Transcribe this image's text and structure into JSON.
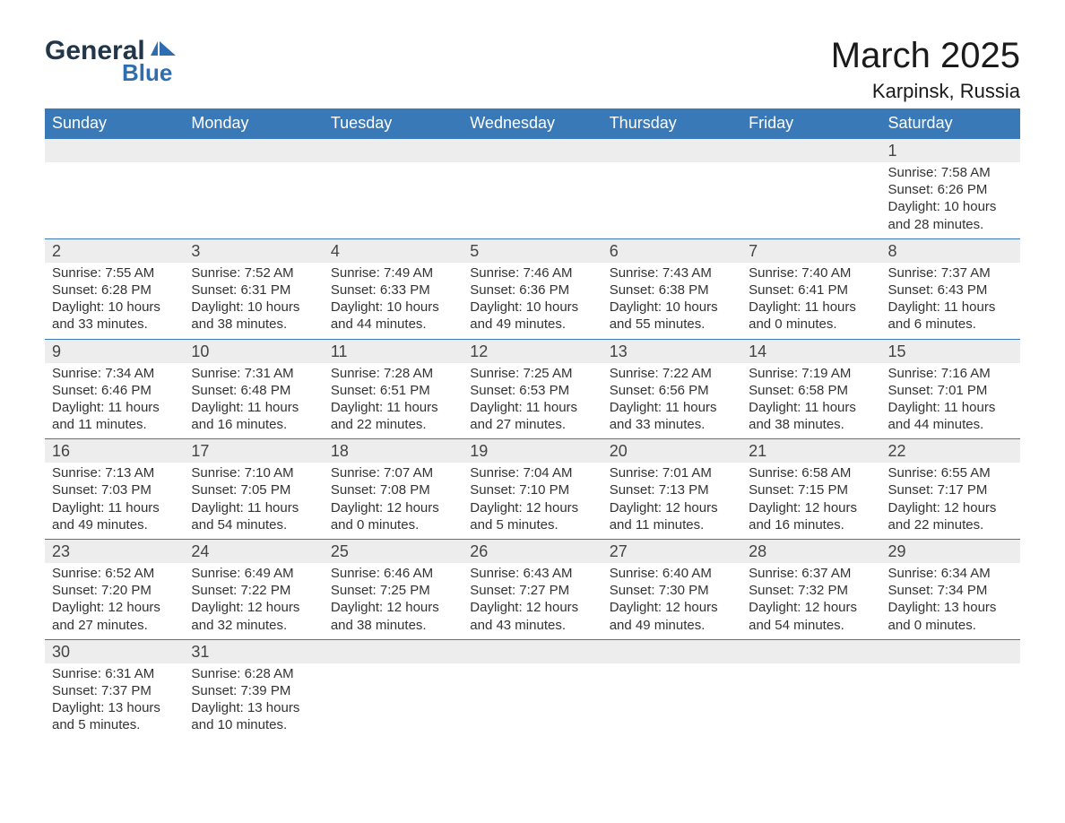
{
  "logo": {
    "text1": "General",
    "text2": "Blue",
    "shape_color": "#2e6eb0"
  },
  "title": "March 2025",
  "location": "Karpinsk, Russia",
  "header_bg": "#3a79b7",
  "header_fg": "#ffffff",
  "daynum_bg": "#ededed",
  "border_color": "#3a79b7",
  "columns": [
    "Sunday",
    "Monday",
    "Tuesday",
    "Wednesday",
    "Thursday",
    "Friday",
    "Saturday"
  ],
  "weeks": [
    [
      null,
      null,
      null,
      null,
      null,
      null,
      {
        "n": "1",
        "sunrise": "7:58 AM",
        "sunset": "6:26 PM",
        "daylight": "10 hours and 28 minutes."
      }
    ],
    [
      {
        "n": "2",
        "sunrise": "7:55 AM",
        "sunset": "6:28 PM",
        "daylight": "10 hours and 33 minutes."
      },
      {
        "n": "3",
        "sunrise": "7:52 AM",
        "sunset": "6:31 PM",
        "daylight": "10 hours and 38 minutes."
      },
      {
        "n": "4",
        "sunrise": "7:49 AM",
        "sunset": "6:33 PM",
        "daylight": "10 hours and 44 minutes."
      },
      {
        "n": "5",
        "sunrise": "7:46 AM",
        "sunset": "6:36 PM",
        "daylight": "10 hours and 49 minutes."
      },
      {
        "n": "6",
        "sunrise": "7:43 AM",
        "sunset": "6:38 PM",
        "daylight": "10 hours and 55 minutes."
      },
      {
        "n": "7",
        "sunrise": "7:40 AM",
        "sunset": "6:41 PM",
        "daylight": "11 hours and 0 minutes."
      },
      {
        "n": "8",
        "sunrise": "7:37 AM",
        "sunset": "6:43 PM",
        "daylight": "11 hours and 6 minutes."
      }
    ],
    [
      {
        "n": "9",
        "sunrise": "7:34 AM",
        "sunset": "6:46 PM",
        "daylight": "11 hours and 11 minutes."
      },
      {
        "n": "10",
        "sunrise": "7:31 AM",
        "sunset": "6:48 PM",
        "daylight": "11 hours and 16 minutes."
      },
      {
        "n": "11",
        "sunrise": "7:28 AM",
        "sunset": "6:51 PM",
        "daylight": "11 hours and 22 minutes."
      },
      {
        "n": "12",
        "sunrise": "7:25 AM",
        "sunset": "6:53 PM",
        "daylight": "11 hours and 27 minutes."
      },
      {
        "n": "13",
        "sunrise": "7:22 AM",
        "sunset": "6:56 PM",
        "daylight": "11 hours and 33 minutes."
      },
      {
        "n": "14",
        "sunrise": "7:19 AM",
        "sunset": "6:58 PM",
        "daylight": "11 hours and 38 minutes."
      },
      {
        "n": "15",
        "sunrise": "7:16 AM",
        "sunset": "7:01 PM",
        "daylight": "11 hours and 44 minutes."
      }
    ],
    [
      {
        "n": "16",
        "sunrise": "7:13 AM",
        "sunset": "7:03 PM",
        "daylight": "11 hours and 49 minutes."
      },
      {
        "n": "17",
        "sunrise": "7:10 AM",
        "sunset": "7:05 PM",
        "daylight": "11 hours and 54 minutes."
      },
      {
        "n": "18",
        "sunrise": "7:07 AM",
        "sunset": "7:08 PM",
        "daylight": "12 hours and 0 minutes."
      },
      {
        "n": "19",
        "sunrise": "7:04 AM",
        "sunset": "7:10 PM",
        "daylight": "12 hours and 5 minutes."
      },
      {
        "n": "20",
        "sunrise": "7:01 AM",
        "sunset": "7:13 PM",
        "daylight": "12 hours and 11 minutes."
      },
      {
        "n": "21",
        "sunrise": "6:58 AM",
        "sunset": "7:15 PM",
        "daylight": "12 hours and 16 minutes."
      },
      {
        "n": "22",
        "sunrise": "6:55 AM",
        "sunset": "7:17 PM",
        "daylight": "12 hours and 22 minutes."
      }
    ],
    [
      {
        "n": "23",
        "sunrise": "6:52 AM",
        "sunset": "7:20 PM",
        "daylight": "12 hours and 27 minutes."
      },
      {
        "n": "24",
        "sunrise": "6:49 AM",
        "sunset": "7:22 PM",
        "daylight": "12 hours and 32 minutes."
      },
      {
        "n": "25",
        "sunrise": "6:46 AM",
        "sunset": "7:25 PM",
        "daylight": "12 hours and 38 minutes."
      },
      {
        "n": "26",
        "sunrise": "6:43 AM",
        "sunset": "7:27 PM",
        "daylight": "12 hours and 43 minutes."
      },
      {
        "n": "27",
        "sunrise": "6:40 AM",
        "sunset": "7:30 PM",
        "daylight": "12 hours and 49 minutes."
      },
      {
        "n": "28",
        "sunrise": "6:37 AM",
        "sunset": "7:32 PM",
        "daylight": "12 hours and 54 minutes."
      },
      {
        "n": "29",
        "sunrise": "6:34 AM",
        "sunset": "7:34 PM",
        "daylight": "13 hours and 0 minutes."
      }
    ],
    [
      {
        "n": "30",
        "sunrise": "6:31 AM",
        "sunset": "7:37 PM",
        "daylight": "13 hours and 5 minutes."
      },
      {
        "n": "31",
        "sunrise": "6:28 AM",
        "sunset": "7:39 PM",
        "daylight": "13 hours and 10 minutes."
      },
      null,
      null,
      null,
      null,
      null
    ]
  ],
  "labels": {
    "sunrise": "Sunrise:",
    "sunset": "Sunset:",
    "daylight": "Daylight:"
  }
}
